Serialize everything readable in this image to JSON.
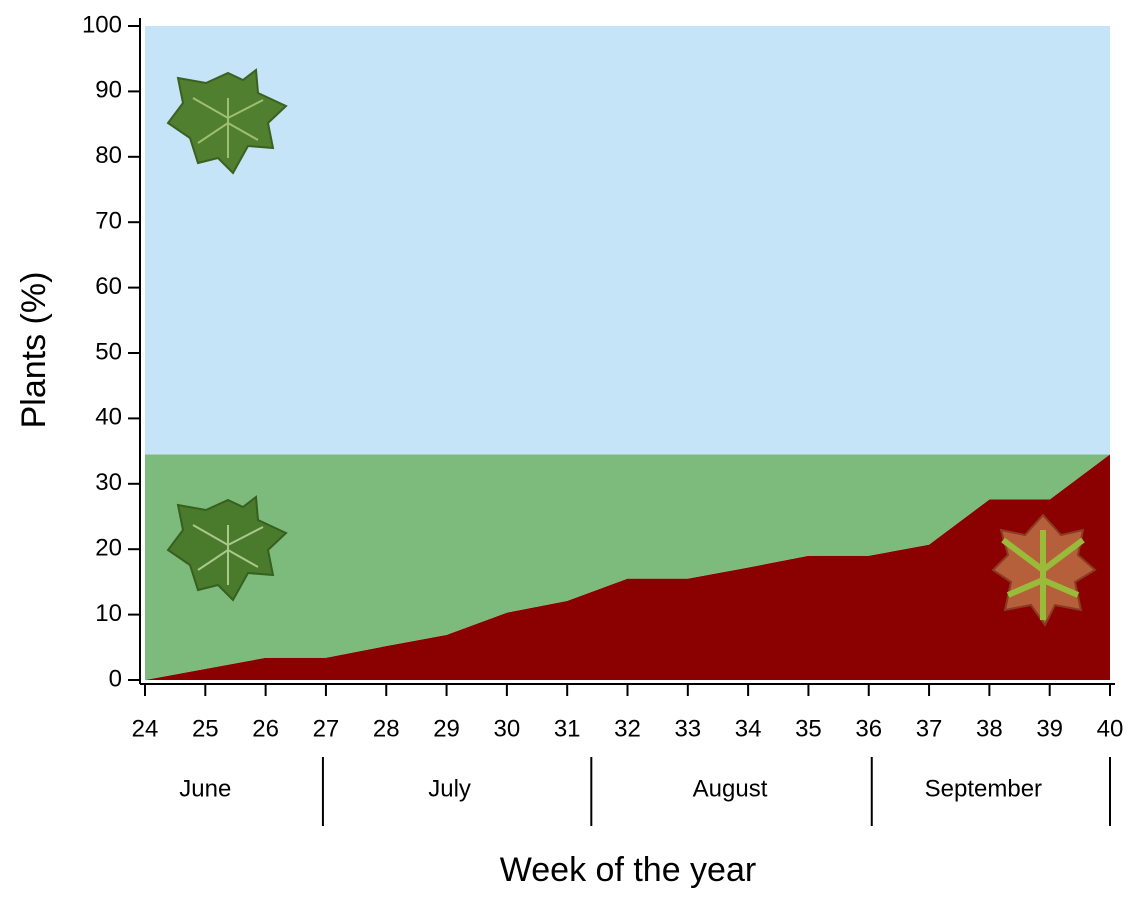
{
  "chart_data": {
    "type": "stacked-area",
    "x_label": "Week of the year",
    "y_label": "Plants (%)",
    "x": [
      24,
      25,
      26,
      27,
      28,
      29,
      30,
      31,
      32,
      33,
      34,
      35,
      36,
      37,
      38,
      39,
      40
    ],
    "series": [
      {
        "color": "#8b0000",
        "values": [
          0,
          1.7,
          3.4,
          3.4,
          5.2,
          6.9,
          10.3,
          12.1,
          15.5,
          15.5,
          17.2,
          19.0,
          19.0,
          20.7,
          27.6,
          27.6,
          34.5
        ]
      },
      {
        "color": "#7dbb7d",
        "values": [
          34.5,
          32.8,
          31.1,
          31.1,
          29.3,
          27.6,
          24.2,
          22.4,
          19.0,
          19.0,
          17.3,
          15.5,
          15.5,
          13.8,
          6.9,
          6.9,
          0
        ]
      },
      {
        "color": "#c5e4f8",
        "values": [
          65.5,
          65.5,
          65.5,
          65.5,
          65.5,
          65.5,
          65.5,
          65.5,
          65.5,
          65.5,
          65.5,
          65.5,
          65.5,
          65.5,
          65.5,
          65.5,
          65.5
        ]
      }
    ],
    "xlim": [
      24,
      40
    ],
    "xticks": [
      24,
      25,
      26,
      27,
      28,
      29,
      30,
      31,
      32,
      33,
      34,
      35,
      36,
      37,
      38,
      39,
      40
    ],
    "ylim": [
      0,
      100
    ],
    "yticks": [
      0,
      10,
      20,
      30,
      40,
      50,
      60,
      70,
      80,
      90,
      100
    ],
    "month_groups": [
      {
        "label": "June",
        "center": 25,
        "end": 26.95
      },
      {
        "label": "July",
        "center": 29.05,
        "end": 31.4
      },
      {
        "label": "August",
        "center": 33.7,
        "end": 36.05
      },
      {
        "label": "September",
        "center": 37.9,
        "end": 40
      }
    ]
  }
}
